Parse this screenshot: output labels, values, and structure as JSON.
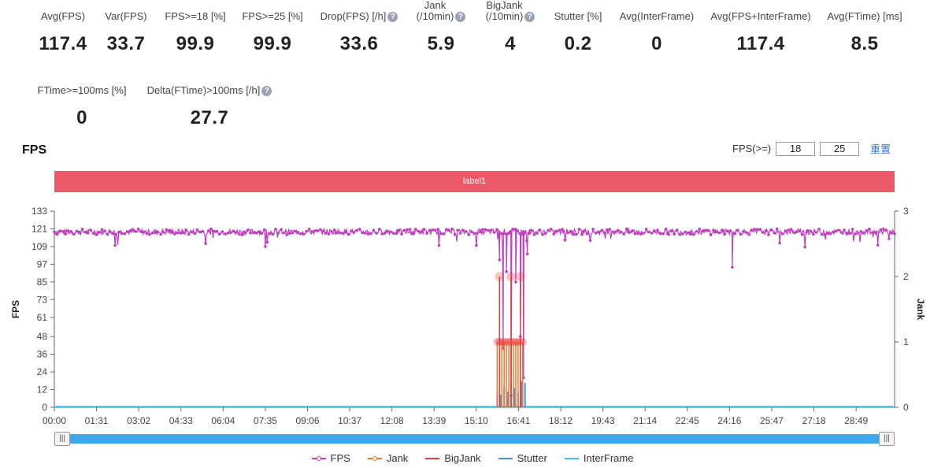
{
  "metrics": [
    {
      "label": "Avg(FPS)",
      "value": "117.4",
      "help": false
    },
    {
      "label": "Var(FPS)",
      "value": "33.7",
      "help": false
    },
    {
      "label": "FPS>=18 [%]",
      "value": "99.9",
      "help": false
    },
    {
      "label": "FPS>=25 [%]",
      "value": "99.9",
      "help": false
    },
    {
      "label": "Drop(FPS) [/h]",
      "value": "33.6",
      "help": true
    },
    {
      "label": "Jank\n(/10min)",
      "value": "5.9",
      "help": true
    },
    {
      "label": "BigJank\n(/10min)",
      "value": "4",
      "help": true
    },
    {
      "label": "Stutter [%]",
      "value": "0.2",
      "help": false
    },
    {
      "label": "Avg(InterFrame)",
      "value": "0",
      "help": false
    },
    {
      "label": "Avg(FPS+InterFrame)",
      "value": "117.4",
      "help": false
    },
    {
      "label": "Avg(FTime) [ms]",
      "value": "8.5",
      "help": false
    },
    {
      "label": "FTime>=100ms [%]",
      "value": "0",
      "help": false
    },
    {
      "label": "Delta(FTime)>100ms [/h]",
      "value": "27.7",
      "help": true
    }
  ],
  "help_glyph": "?",
  "chart_title": "FPS",
  "fps_filter": {
    "label": "FPS(>=)",
    "value1": "18",
    "value2": "25",
    "reset_label": "重置"
  },
  "band_label": "label1",
  "slider": {
    "left_glyph": "|||",
    "right_glyph": "|||"
  },
  "chart_data": {
    "type": "line",
    "x_ticks": [
      "00:00",
      "01:31",
      "03:02",
      "04:33",
      "06:04",
      "07:35",
      "09:06",
      "10:37",
      "12:08",
      "13:39",
      "15:10",
      "16:41",
      "18:12",
      "19:43",
      "21:14",
      "22:45",
      "24:16",
      "25:47",
      "27:18",
      "28:49"
    ],
    "xlim_seconds": [
      0,
      1812
    ],
    "y_left": {
      "label": "FPS",
      "ticks": [
        0,
        12,
        24,
        36,
        48,
        61,
        73,
        85,
        97,
        109,
        121,
        133
      ],
      "lim": [
        0,
        133
      ]
    },
    "y_right": {
      "label": "Jank",
      "ticks": [
        0,
        1,
        2,
        3
      ],
      "lim": [
        0,
        3
      ]
    },
    "series": [
      {
        "name": "FPS",
        "color": "#c03fbf",
        "baseline": 119,
        "drops": [
          {
            "t": 960,
            "v": 100
          },
          {
            "t": 968,
            "v": 40
          },
          {
            "t": 975,
            "v": 92
          },
          {
            "t": 985,
            "v": 8
          },
          {
            "t": 995,
            "v": 85
          },
          {
            "t": 1005,
            "v": 48
          },
          {
            "t": 1012,
            "v": 20
          },
          {
            "t": 1020,
            "v": 104
          },
          {
            "t": 1462,
            "v": 95
          }
        ]
      },
      {
        "name": "Jank",
        "color": "#f07a2a"
      },
      {
        "name": "BigJank",
        "color": "#e83a3a"
      },
      {
        "name": "Stutter",
        "color": "#4a8fe8"
      },
      {
        "name": "InterFrame",
        "color": "#38c9e0"
      }
    ],
    "jank_events_t": [
      955,
      960,
      965,
      970,
      975,
      980,
      985,
      990,
      995,
      1000,
      1005,
      1010
    ],
    "bigjank_events_t": [
      960,
      985,
      1005
    ],
    "legend_position": "bottom"
  }
}
